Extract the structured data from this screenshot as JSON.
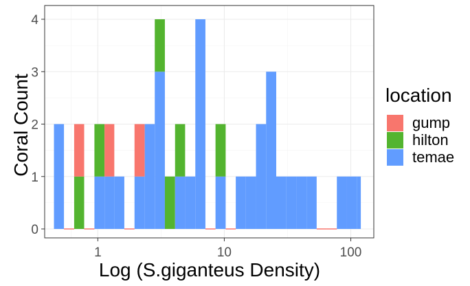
{
  "chart_data": {
    "type": "bar",
    "stacked": true,
    "histogram": true,
    "x_scale": "log10",
    "xlabel": "Log (S.giganteus Density)",
    "ylabel": "Coral Count",
    "xlim": [
      0.38,
      152
    ],
    "ylim": [
      0,
      4
    ],
    "x_ticks": [
      1,
      10,
      100
    ],
    "x_tick_labels": [
      "1",
      "10",
      "100"
    ],
    "y_ticks": [
      0,
      1,
      2,
      3,
      4
    ],
    "y_tick_labels": [
      "0",
      "1",
      "2",
      "3",
      "4"
    ],
    "grid": true,
    "legend": {
      "title": "location",
      "position": "right",
      "entries": [
        "gump",
        "hilton",
        "temae"
      ]
    },
    "colors": {
      "gump": "#F8766D",
      "hilton": "#53B42F",
      "temae": "#619CFF"
    },
    "bins": [
      {
        "x_start": 0.45,
        "x_end": 0.54,
        "gump": 0,
        "hilton": 0,
        "temae": 2
      },
      {
        "x_start": 0.54,
        "x_end": 0.65,
        "gump": 0,
        "hilton": 0,
        "temae": 0
      },
      {
        "x_start": 0.65,
        "x_end": 0.78,
        "gump": 1,
        "hilton": 1,
        "temae": 0
      },
      {
        "x_start": 0.78,
        "x_end": 0.94,
        "gump": 0,
        "hilton": 0,
        "temae": 0
      },
      {
        "x_start": 0.94,
        "x_end": 1.13,
        "gump": 0,
        "hilton": 1,
        "temae": 1
      },
      {
        "x_start": 1.13,
        "x_end": 1.35,
        "gump": 1,
        "hilton": 0,
        "temae": 1
      },
      {
        "x_start": 1.35,
        "x_end": 1.62,
        "gump": 0,
        "hilton": 0,
        "temae": 1
      },
      {
        "x_start": 1.62,
        "x_end": 1.95,
        "gump": 0,
        "hilton": 0,
        "temae": 0
      },
      {
        "x_start": 1.95,
        "x_end": 2.35,
        "gump": 1,
        "hilton": 0,
        "temae": 1
      },
      {
        "x_start": 2.35,
        "x_end": 2.82,
        "gump": 0,
        "hilton": 0,
        "temae": 2
      },
      {
        "x_start": 2.82,
        "x_end": 3.39,
        "gump": 0,
        "hilton": 1,
        "temae": 3
      },
      {
        "x_start": 3.39,
        "x_end": 4.08,
        "gump": 0,
        "hilton": 1,
        "temae": 0
      },
      {
        "x_start": 4.08,
        "x_end": 4.9,
        "gump": 0,
        "hilton": 1,
        "temae": 1
      },
      {
        "x_start": 4.9,
        "x_end": 5.9,
        "gump": 0,
        "hilton": 0,
        "temae": 1
      },
      {
        "x_start": 5.9,
        "x_end": 7.09,
        "gump": 0,
        "hilton": 0,
        "temae": 4
      },
      {
        "x_start": 7.09,
        "x_end": 8.52,
        "gump": 0,
        "hilton": 0,
        "temae": 0
      },
      {
        "x_start": 8.52,
        "x_end": 10.25,
        "gump": 0,
        "hilton": 1,
        "temae": 1
      },
      {
        "x_start": 10.25,
        "x_end": 12.32,
        "gump": 0,
        "hilton": 0,
        "temae": 0
      },
      {
        "x_start": 12.32,
        "x_end": 14.81,
        "gump": 0,
        "hilton": 0,
        "temae": 1
      },
      {
        "x_start": 14.81,
        "x_end": 17.8,
        "gump": 0,
        "hilton": 0,
        "temae": 1
      },
      {
        "x_start": 17.8,
        "x_end": 21.4,
        "gump": 0,
        "hilton": 0,
        "temae": 2
      },
      {
        "x_start": 21.4,
        "x_end": 25.73,
        "gump": 0,
        "hilton": 0,
        "temae": 3
      },
      {
        "x_start": 25.73,
        "x_end": 30.92,
        "gump": 0,
        "hilton": 0,
        "temae": 1
      },
      {
        "x_start": 30.92,
        "x_end": 37.17,
        "gump": 0,
        "hilton": 0,
        "temae": 1
      },
      {
        "x_start": 37.17,
        "x_end": 44.68,
        "gump": 0,
        "hilton": 0,
        "temae": 1
      },
      {
        "x_start": 44.68,
        "x_end": 53.71,
        "gump": 0,
        "hilton": 0,
        "temae": 1
      },
      {
        "x_start": 53.71,
        "x_end": 64.56,
        "gump": 0,
        "hilton": 0,
        "temae": 0
      },
      {
        "x_start": 64.56,
        "x_end": 77.6,
        "gump": 0,
        "hilton": 0,
        "temae": 0
      },
      {
        "x_start": 77.6,
        "x_end": 93.28,
        "gump": 0,
        "hilton": 0,
        "temae": 1
      },
      {
        "x_start": 93.28,
        "x_end": 112.13,
        "gump": 0,
        "hilton": 0,
        "temae": 1
      },
      {
        "x_start": 112.13,
        "x_end": 120,
        "gump": 0,
        "hilton": 0,
        "temae": 1
      }
    ]
  }
}
